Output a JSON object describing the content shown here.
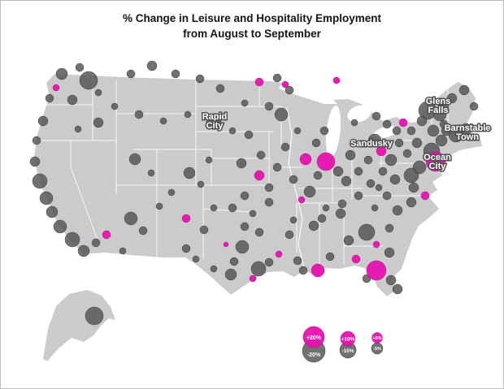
{
  "title": {
    "line1": "% Change in Leisure and Hospitality Employment",
    "line2": "from August to September"
  },
  "colors": {
    "positive": "#E811B0",
    "negative": "#585858",
    "land": "#CBCBCB",
    "state_border": "#FFFFFF",
    "background": "#FFFFFF",
    "title_text": "#141414"
  },
  "legend": {
    "items": [
      {
        "pos": "+20%",
        "neg": "-20%"
      },
      {
        "pos": "+10%",
        "neg": "-10%"
      },
      {
        "pos": "+5%",
        "neg": "-5%"
      }
    ]
  },
  "city_labels": {
    "rapid_city": {
      "line1": "Rapid",
      "line2": "City"
    },
    "glens_falls": {
      "line1": "Glens",
      "line2": "Falls"
    },
    "barnstable": {
      "line1": "Barnstable",
      "line2": "Town"
    },
    "sandusky": {
      "line1": "Sandusky"
    },
    "ocean_city": {
      "line1": "Ocean",
      "line2": "City"
    }
  },
  "chart_data": {
    "type": "bubble-map",
    "title": "% Change in Leisure and Hospitality Employment from August to September",
    "region": "United States",
    "encoding": {
      "color_positive": "magenta bubble = % increase",
      "color_negative": "gray bubble = % decrease",
      "size": "magnitude of % change"
    },
    "legend_scale": [
      {
        "positive": "+20%",
        "negative": "-20%"
      },
      {
        "positive": "+10%",
        "negative": "-10%"
      },
      {
        "positive": "+5%",
        "negative": "-5%"
      }
    ],
    "labeled_metros": [
      "Rapid City",
      "Glens Falls",
      "Barnstable Town",
      "Sandusky",
      "Ocean City"
    ],
    "points_format": [
      "x_px",
      "y_px",
      "radius_px",
      "direction(p=positive,n=negative)"
    ],
    "points": [
      [
        75,
        90,
        7,
        "n"
      ],
      [
        97,
        82,
        5,
        "n"
      ],
      [
        108,
        98,
        11,
        "n"
      ],
      [
        68,
        107,
        4,
        "p"
      ],
      [
        60,
        120,
        5,
        "n"
      ],
      [
        88,
        122,
        6,
        "n"
      ],
      [
        120,
        113,
        4,
        "n"
      ],
      [
        52,
        148,
        6,
        "n"
      ],
      [
        95,
        158,
        4,
        "n"
      ],
      [
        120,
        150,
        6,
        "n"
      ],
      [
        140,
        130,
        4,
        "n"
      ],
      [
        160,
        90,
        5,
        "n"
      ],
      [
        186,
        80,
        6,
        "n"
      ],
      [
        215,
        90,
        5,
        "n"
      ],
      [
        245,
        96,
        5,
        "n"
      ],
      [
        270,
        108,
        5,
        "n"
      ],
      [
        170,
        140,
        5,
        "n"
      ],
      [
        200,
        148,
        4,
        "n"
      ],
      [
        230,
        140,
        4,
        "n"
      ],
      [
        44,
        172,
        5,
        "n"
      ],
      [
        42,
        198,
        6,
        "n"
      ],
      [
        48,
        222,
        9,
        "n"
      ],
      [
        56,
        243,
        8,
        "n"
      ],
      [
        63,
        260,
        7,
        "n"
      ],
      [
        73,
        278,
        8,
        "n"
      ],
      [
        88,
        294,
        9,
        "n"
      ],
      [
        102,
        308,
        7,
        "n"
      ],
      [
        117,
        298,
        5,
        "n"
      ],
      [
        130,
        288,
        5,
        "p"
      ],
      [
        150,
        308,
        4,
        "n"
      ],
      [
        160,
        268,
        8,
        "n"
      ],
      [
        175,
        283,
        5,
        "n"
      ],
      [
        195,
        253,
        4,
        "n"
      ],
      [
        165,
        195,
        7,
        "n"
      ],
      [
        185,
        212,
        4,
        "n"
      ],
      [
        228,
        268,
        5,
        "p"
      ],
      [
        232,
        212,
        7,
        "n"
      ],
      [
        246,
        226,
        4,
        "n"
      ],
      [
        256,
        196,
        4,
        "n"
      ],
      [
        210,
        236,
        4,
        "n"
      ],
      [
        250,
        282,
        5,
        "n"
      ],
      [
        228,
        305,
        5,
        "n"
      ],
      [
        262,
        255,
        4,
        "n"
      ],
      [
        262,
        148,
        9,
        "n"
      ],
      [
        285,
        160,
        4,
        "n"
      ],
      [
        300,
        126,
        4,
        "n"
      ],
      [
        318,
        100,
        5,
        "p"
      ],
      [
        340,
        95,
        5,
        "n"
      ],
      [
        350,
        103,
        4,
        "p"
      ],
      [
        330,
        130,
        5,
        "n"
      ],
      [
        305,
        165,
        5,
        "n"
      ],
      [
        320,
        190,
        5,
        "n"
      ],
      [
        296,
        200,
        6,
        "n"
      ],
      [
        318,
        215,
        6,
        "p"
      ],
      [
        330,
        230,
        5,
        "n"
      ],
      [
        300,
        240,
        5,
        "n"
      ],
      [
        285,
        255,
        5,
        "n"
      ],
      [
        310,
        262,
        4,
        "n"
      ],
      [
        300,
        278,
        5,
        "n"
      ],
      [
        318,
        285,
        5,
        "n"
      ],
      [
        297,
        303,
        8,
        "n"
      ],
      [
        317,
        330,
        9,
        "n"
      ],
      [
        283,
        337,
        7,
        "n"
      ],
      [
        287,
        321,
        5,
        "n"
      ],
      [
        262,
        330,
        4,
        "n"
      ],
      [
        240,
        318,
        4,
        "n"
      ],
      [
        310,
        342,
        4,
        "p"
      ],
      [
        330,
        322,
        5,
        "n"
      ],
      [
        277,
        300,
        3,
        "p"
      ],
      [
        355,
        110,
        5,
        "n"
      ],
      [
        345,
        140,
        8,
        "n"
      ],
      [
        365,
        160,
        4,
        "n"
      ],
      [
        350,
        180,
        5,
        "n"
      ],
      [
        340,
        205,
        5,
        "n"
      ],
      [
        360,
        220,
        5,
        "n"
      ],
      [
        330,
        248,
        5,
        "n"
      ],
      [
        370,
        245,
        4,
        "p"
      ],
      [
        380,
        235,
        7,
        "n"
      ],
      [
        390,
        215,
        5,
        "n"
      ],
      [
        375,
        195,
        7,
        "p"
      ],
      [
        388,
        175,
        5,
        "n"
      ],
      [
        398,
        160,
        5,
        "n"
      ],
      [
        400,
        198,
        11,
        "p"
      ],
      [
        415,
        210,
        6,
        "n"
      ],
      [
        425,
        222,
        6,
        "n"
      ],
      [
        440,
        210,
        5,
        "n"
      ],
      [
        430,
        190,
        6,
        "n"
      ],
      [
        460,
        172,
        8,
        "n"
      ],
      [
        413,
        98,
        4,
        "p"
      ],
      [
        435,
        150,
        4,
        "n"
      ],
      [
        452,
        196,
        5,
        "n"
      ],
      [
        468,
        185,
        6,
        "p"
      ],
      [
        480,
        196,
        7,
        "n"
      ],
      [
        470,
        210,
        5,
        "n"
      ],
      [
        455,
        225,
        5,
        "n"
      ],
      [
        485,
        220,
        6,
        "n"
      ],
      [
        440,
        240,
        5,
        "n"
      ],
      [
        420,
        250,
        5,
        "n"
      ],
      [
        400,
        255,
        4,
        "n"
      ],
      [
        418,
        262,
        6,
        "n"
      ],
      [
        395,
        268,
        5,
        "n"
      ],
      [
        385,
        277,
        6,
        "n"
      ],
      [
        360,
        270,
        4,
        "n"
      ],
      [
        355,
        288,
        5,
        "n"
      ],
      [
        342,
        312,
        4,
        "p"
      ],
      [
        365,
        320,
        5,
        "n"
      ],
      [
        390,
        332,
        8,
        "p"
      ],
      [
        372,
        332,
        5,
        "n"
      ],
      [
        405,
        315,
        5,
        "n"
      ],
      [
        428,
        295,
        6,
        "n"
      ],
      [
        450,
        285,
        10,
        "n"
      ],
      [
        462,
        300,
        4,
        "p"
      ],
      [
        478,
        280,
        5,
        "n"
      ],
      [
        488,
        258,
        6,
        "n"
      ],
      [
        505,
        248,
        6,
        "n"
      ],
      [
        522,
        240,
        5,
        "p"
      ],
      [
        508,
        230,
        6,
        "n"
      ],
      [
        505,
        215,
        9,
        "n"
      ],
      [
        475,
        240,
        5,
        "n"
      ],
      [
        460,
        255,
        4,
        "n"
      ],
      [
        465,
        230,
        4,
        "n"
      ],
      [
        437,
        318,
        5,
        "p"
      ],
      [
        462,
        332,
        12,
        "p"
      ],
      [
        478,
        310,
        6,
        "n"
      ],
      [
        480,
        344,
        6,
        "n"
      ],
      [
        488,
        355,
        6,
        "n"
      ],
      [
        450,
        342,
        5,
        "n"
      ],
      [
        515,
        205,
        8,
        "n"
      ],
      [
        535,
        198,
        12,
        "p"
      ],
      [
        530,
        185,
        10,
        "n"
      ],
      [
        542,
        172,
        7,
        "n"
      ],
      [
        548,
        160,
        6,
        "n"
      ],
      [
        560,
        165,
        9,
        "n"
      ],
      [
        572,
        158,
        7,
        "n"
      ],
      [
        525,
        135,
        11,
        "n"
      ],
      [
        540,
        140,
        8,
        "n"
      ],
      [
        505,
        160,
        5,
        "n"
      ],
      [
        490,
        175,
        5,
        "n"
      ],
      [
        495,
        150,
        5,
        "p"
      ],
      [
        555,
        120,
        6,
        "n"
      ],
      [
        570,
        110,
        6,
        "n"
      ],
      [
        582,
        130,
        5,
        "n"
      ],
      [
        545,
        152,
        5,
        "n"
      ],
      [
        512,
        175,
        6,
        "n"
      ],
      [
        532,
        160,
        7,
        "n"
      ],
      [
        545,
        130,
        6,
        "n"
      ],
      [
        500,
        188,
        5,
        "n"
      ],
      [
        487,
        160,
        5,
        "n"
      ],
      [
        475,
        152,
        5,
        "n"
      ],
      [
        462,
        142,
        5,
        "n"
      ],
      [
        518,
        148,
        6,
        "n"
      ],
      [
        115,
        388,
        11,
        "n"
      ]
    ]
  }
}
